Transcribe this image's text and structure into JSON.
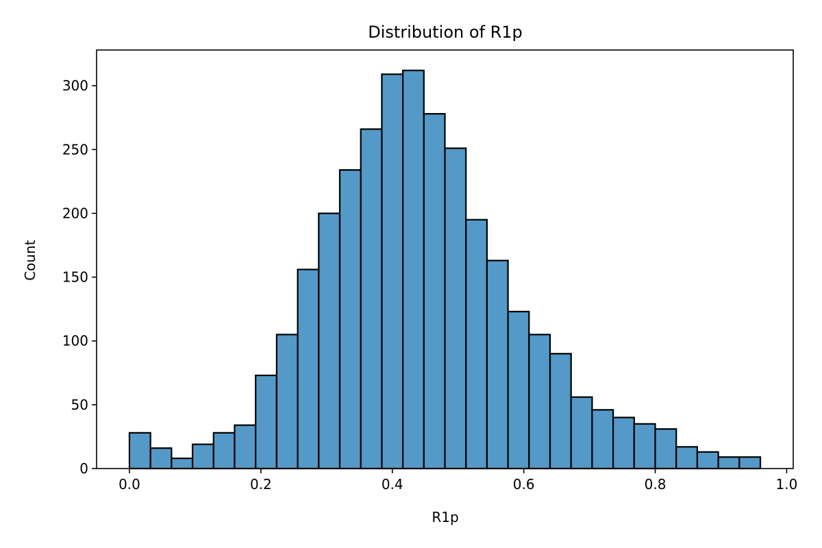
{
  "chart_data": {
    "type": "bar",
    "title": "Distribution of R1p",
    "xlabel": "R1p",
    "ylabel": "Count",
    "xlim": [
      -0.05,
      1.01
    ],
    "ylim": [
      0,
      328
    ],
    "grid": false,
    "bar_color": "#5499C7",
    "edge_color": "#000000",
    "bin_edges": [
      0.0,
      0.032,
      0.064,
      0.096,
      0.128,
      0.16,
      0.192,
      0.224,
      0.256,
      0.288,
      0.32,
      0.352,
      0.384,
      0.416,
      0.448,
      0.48,
      0.512,
      0.544,
      0.576,
      0.608,
      0.64,
      0.672,
      0.704,
      0.736,
      0.768,
      0.8,
      0.832,
      0.864,
      0.896,
      0.928,
      0.96
    ],
    "values": [
      28,
      16,
      8,
      19,
      28,
      34,
      73,
      105,
      156,
      200,
      234,
      266,
      309,
      312,
      278,
      251,
      195,
      163,
      123,
      105,
      90,
      56,
      46,
      40,
      35,
      31,
      17,
      13,
      9,
      9
    ],
    "xticks": [
      0.0,
      0.2,
      0.4,
      0.6,
      0.8,
      1.0
    ],
    "xtick_labels": [
      "0.0",
      "0.2",
      "0.4",
      "0.6",
      "0.8",
      "1.0"
    ],
    "yticks": [
      0,
      50,
      100,
      150,
      200,
      250,
      300
    ],
    "ytick_labels": [
      "0",
      "50",
      "100",
      "150",
      "200",
      "250",
      "300"
    ]
  }
}
